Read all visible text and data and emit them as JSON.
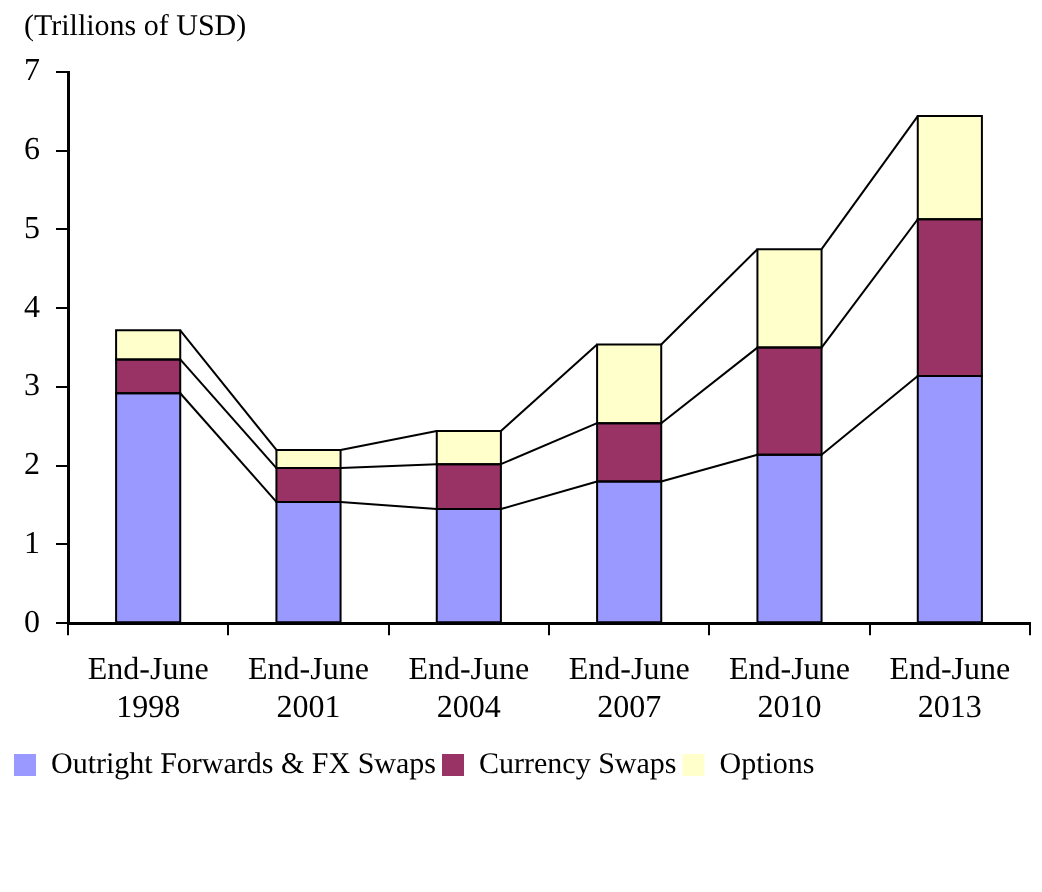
{
  "chart_data": {
    "type": "bar",
    "ylabel": "(Trillions of USD)",
    "stacked": true,
    "categories": [
      "End-June 1998",
      "End-June 2001",
      "End-June 2004",
      "End-June 2007",
      "End-June 2010",
      "End-June 2013"
    ],
    "series": [
      {
        "name": "Outright Forwards & FX Swaps",
        "color": "#9999ff",
        "values": [
          2.92,
          1.54,
          1.45,
          1.8,
          2.14,
          3.14
        ]
      },
      {
        "name": "Currency Swaps",
        "color": "#993366",
        "values": [
          0.43,
          0.43,
          0.57,
          0.74,
          1.36,
          1.99
        ]
      },
      {
        "name": "Options",
        "color": "#ffffcc",
        "values": [
          0.37,
          0.23,
          0.42,
          1.0,
          1.25,
          1.31
        ]
      }
    ],
    "ylim": [
      0,
      7
    ],
    "yticks": [
      0,
      1,
      2,
      3,
      4,
      5,
      6,
      7
    ],
    "grid": false,
    "legend": "bottom"
  }
}
